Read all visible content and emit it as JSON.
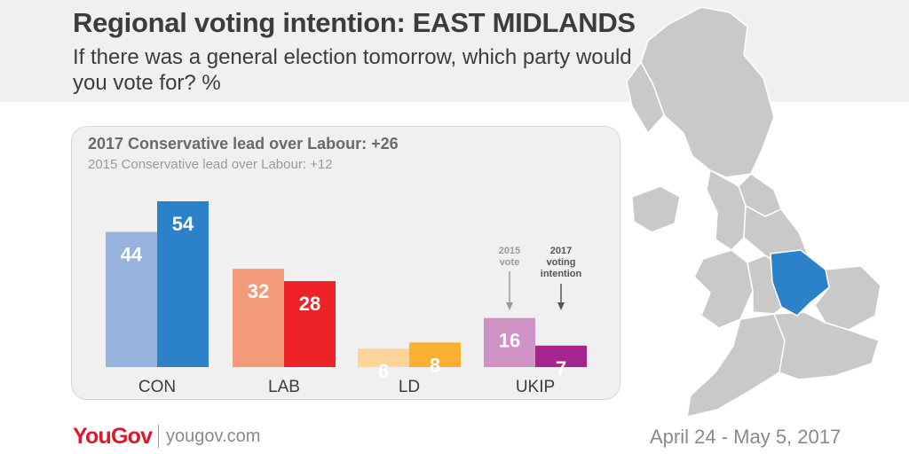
{
  "header": {
    "title": "Regional voting intention: EAST MIDLANDS",
    "subtitle": "If there was a general election tomorrow, which party would you vote for? %"
  },
  "panel": {
    "lead_2017": "2017 Conservative lead over Labour: +26",
    "lead_2015": "2015 Conservative lead over Labour: +12"
  },
  "chart_data": {
    "type": "bar",
    "categories": [
      "CON",
      "LAB",
      "LD",
      "UKIP"
    ],
    "series": [
      {
        "name": "2015 vote",
        "values": [
          44,
          32,
          6,
          16
        ]
      },
      {
        "name": "2017 voting intention",
        "values": [
          54,
          28,
          8,
          7
        ]
      }
    ],
    "colors": {
      "CON": [
        "#95b3dd",
        "#2b82c9"
      ],
      "LAB": [
        "#f39a7a",
        "#ed2327"
      ],
      "LD": [
        "#fbd59a",
        "#fbb034"
      ],
      "UKIP": [
        "#cf92c4",
        "#a5248d"
      ]
    },
    "annotations": {
      "label_2015": "2015 vote",
      "label_2017": "2017 voting intention"
    },
    "ylim": [
      0,
      54
    ],
    "grid": false
  },
  "map": {
    "highlighted_region": "East Midlands",
    "highlight_color": "#2b82c9",
    "base_color": "#c9c9c9"
  },
  "footer": {
    "logo": "YouGov",
    "url": "yougov.com",
    "date": "April 24 - May 5, 2017"
  }
}
